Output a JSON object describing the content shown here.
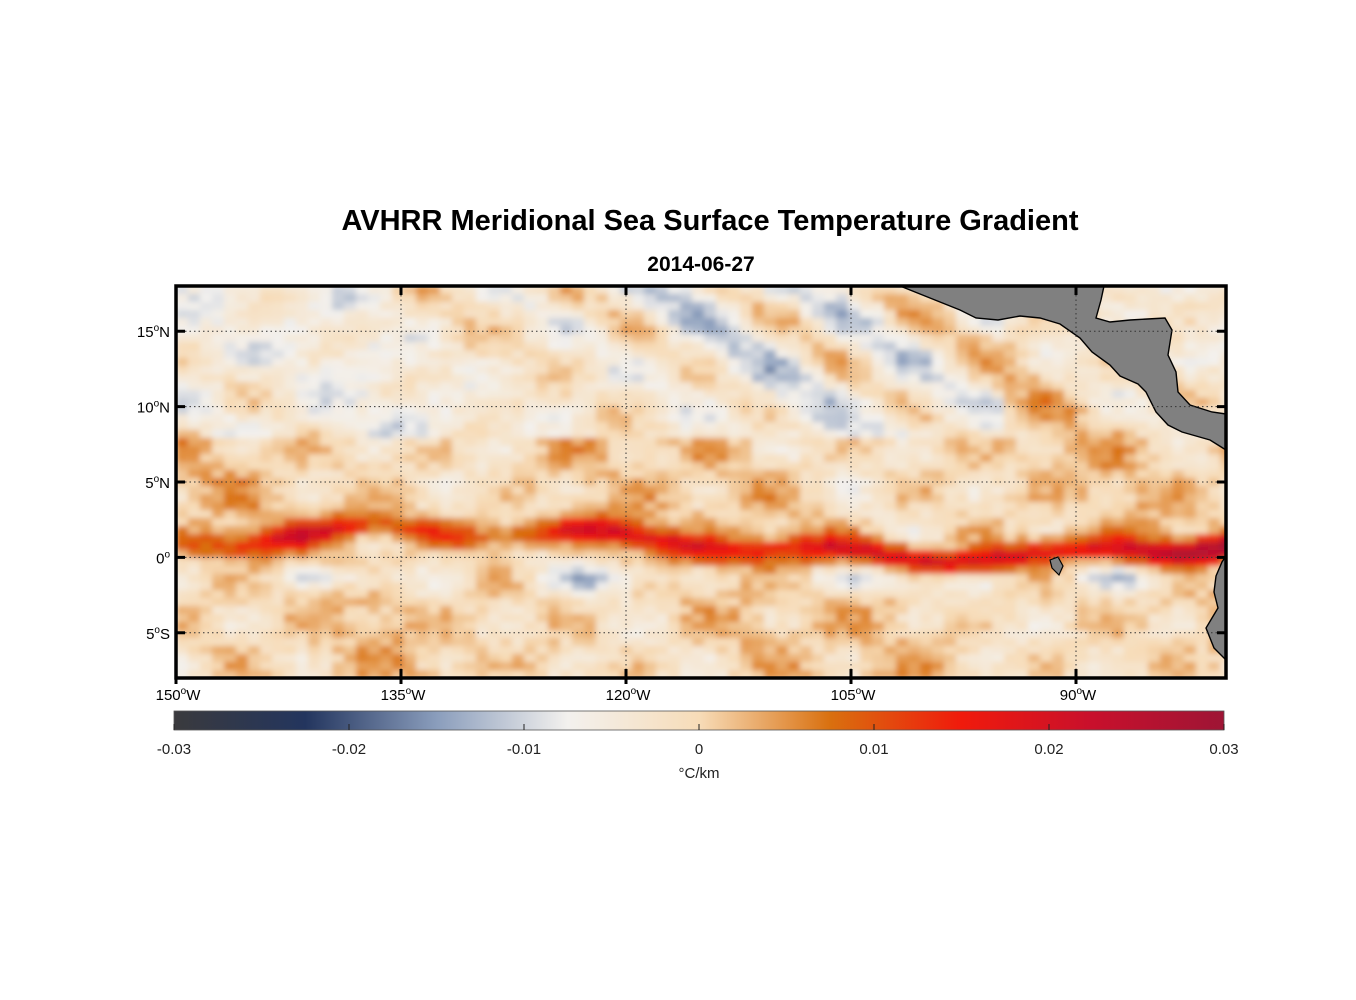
{
  "figure": {
    "title": "AVHRR Meridional Sea Surface Temperature Gradient",
    "subtitle": "2014-06-27"
  },
  "map": {
    "lon_range": [
      -150,
      -80
    ],
    "lat_range": [
      -8,
      18
    ],
    "grid": "dotted",
    "land_color": "#808080",
    "x_ticks": [
      {
        "value": -150,
        "num": "150",
        "deg": "o",
        "hemi": "W"
      },
      {
        "value": -135,
        "num": "135",
        "deg": "o",
        "hemi": "W"
      },
      {
        "value": -120,
        "num": "120",
        "deg": "o",
        "hemi": "W"
      },
      {
        "value": -105,
        "num": "105",
        "deg": "o",
        "hemi": "W"
      },
      {
        "value": -90,
        "num": "90",
        "deg": "o",
        "hemi": "W"
      }
    ],
    "y_ticks": [
      {
        "value": 15,
        "num": "15",
        "deg": "o",
        "hemi": "N"
      },
      {
        "value": 10,
        "num": "10",
        "deg": "o",
        "hemi": "N"
      },
      {
        "value": 5,
        "num": "5",
        "deg": "o",
        "hemi": "N"
      },
      {
        "value": 0,
        "num": "0",
        "deg": "o",
        "hemi": ""
      },
      {
        "value": -5,
        "num": "5",
        "deg": "o",
        "hemi": "S"
      }
    ]
  },
  "colorbar": {
    "range": [
      -0.03,
      0.03
    ],
    "label": "°C/km",
    "ticks": [
      {
        "value": -0.03,
        "label": "-0.03"
      },
      {
        "value": -0.02,
        "label": "-0.02"
      },
      {
        "value": -0.01,
        "label": "-0.01"
      },
      {
        "value": 0,
        "label": "0"
      },
      {
        "value": 0.01,
        "label": "0.01"
      },
      {
        "value": 0.02,
        "label": "0.02"
      },
      {
        "value": 0.03,
        "label": "0.03"
      }
    ],
    "colors": [
      "#3a3a3d",
      "#23355e",
      "#8a9dbc",
      "#f3f1ee",
      "#f7dcb8",
      "#d9700f",
      "#f01a0c",
      "#c8102c",
      "#9e1535"
    ]
  }
}
